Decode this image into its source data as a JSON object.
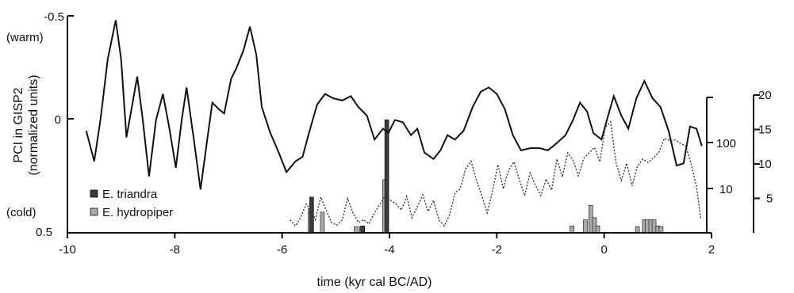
{
  "chart_data": {
    "type": "line",
    "xlabel": "time (kyr cal BC/AD)",
    "x_ticks": [
      "-10",
      "-8",
      "-6",
      "-4",
      "-2",
      "0",
      "2"
    ],
    "xlim": [
      -10,
      2
    ],
    "left_axis": {
      "label_line1": "PCI in GISP2",
      "label_line2": "(normalized units)",
      "ticks": [
        "-0.5",
        "0",
        "0.5"
      ],
      "top_note": "(warm)",
      "bottom_note": "(cold)",
      "ylim": [
        0.5,
        -0.5
      ]
    },
    "middle_axis": {
      "ticks": [
        "100",
        "10"
      ],
      "scale": "log"
    },
    "right_axis": {
      "ticks": [
        "20",
        "15",
        "10",
        "5"
      ],
      "ylim": [
        0,
        20
      ]
    },
    "legend": [
      {
        "label": "E. triandra",
        "color": "#3a3a3a"
      },
      {
        "label": "E. hydropiper",
        "color": "#a9a9a9"
      }
    ],
    "series": [
      {
        "style": "solid",
        "x": [
          -9.65,
          -9.5,
          -9.38,
          -9.25,
          -9.1,
          -9.0,
          -8.9,
          -8.82,
          -8.7,
          -8.6,
          -8.48,
          -8.35,
          -8.22,
          -8.1,
          -7.98,
          -7.87,
          -7.78,
          -7.65,
          -7.52,
          -7.4,
          -7.3,
          -7.18,
          -7.08,
          -6.95,
          -6.85,
          -6.72,
          -6.6,
          -6.48,
          -6.38,
          -6.22,
          -6.08,
          -5.92,
          -5.75,
          -5.62,
          -5.5,
          -5.35,
          -5.2,
          -5.05,
          -4.88,
          -4.72,
          -4.58,
          -4.42,
          -4.28,
          -4.12,
          -4.02,
          -3.9,
          -3.75,
          -3.6,
          -3.48,
          -3.35,
          -3.18,
          -3.05,
          -2.92,
          -2.78,
          -2.62,
          -2.45,
          -2.3,
          -2.15,
          -2.0,
          -1.85,
          -1.7,
          -1.55,
          -1.38,
          -1.2,
          -1.05,
          -0.9,
          -0.72,
          -0.58,
          -0.45,
          -0.32,
          -0.2,
          -0.05,
          0.05,
          0.18,
          0.32,
          0.45,
          0.6,
          0.75,
          0.9,
          1.05,
          1.2,
          1.35,
          1.48,
          1.6,
          1.72,
          1.82
        ],
        "y": [
          0.03,
          0.17,
          -0.03,
          -0.3,
          -0.48,
          -0.3,
          0.06,
          -0.05,
          -0.22,
          -0.03,
          0.24,
          -0.02,
          -0.14,
          0.02,
          0.2,
          -0.02,
          -0.17,
          0.06,
          0.3,
          0.08,
          -0.1,
          -0.07,
          -0.05,
          -0.21,
          -0.26,
          -0.34,
          -0.45,
          -0.32,
          -0.08,
          0.04,
          0.12,
          0.22,
          0.17,
          0.15,
          0.04,
          -0.09,
          -0.14,
          -0.12,
          -0.11,
          -0.13,
          -0.08,
          -0.04,
          0.07,
          0.02,
          0.04,
          -0.02,
          -0.01,
          0.05,
          0.02,
          0.13,
          0.16,
          0.12,
          0.05,
          0.07,
          0.03,
          -0.08,
          -0.15,
          -0.17,
          -0.14,
          -0.07,
          0.05,
          0.12,
          0.11,
          0.11,
          0.12,
          0.09,
          0.05,
          -0.02,
          -0.1,
          -0.06,
          0.04,
          0.07,
          -0.02,
          -0.13,
          -0.04,
          0.02,
          -0.12,
          -0.2,
          -0.12,
          -0.08,
          0.03,
          0.19,
          0.18,
          0.01,
          0.02,
          0.1
        ]
      },
      {
        "style": "dotted",
        "x": [
          -5.85,
          -5.75,
          -5.65,
          -5.55,
          -5.45,
          -5.38,
          -5.28,
          -5.18,
          -5.08,
          -4.98,
          -4.88,
          -4.78,
          -4.68,
          -4.58,
          -4.48,
          -4.38,
          -4.28,
          -4.18,
          -4.08,
          -3.98,
          -3.88,
          -3.78,
          -3.68,
          -3.58,
          -3.48,
          -3.38,
          -3.28,
          -3.18,
          -3.08,
          -2.98,
          -2.88,
          -2.78,
          -2.68,
          -2.58,
          -2.48,
          -2.38,
          -2.28,
          -2.18,
          -2.08,
          -1.98,
          -1.88,
          -1.78,
          -1.68,
          -1.58,
          -1.48,
          -1.38,
          -1.28,
          -1.18,
          -1.08,
          -0.98,
          -0.88,
          -0.78,
          -0.68,
          -0.58,
          -0.48,
          -0.38,
          -0.28,
          -0.18,
          -0.08,
          0.02,
          0.12,
          0.22,
          0.32,
          0.42,
          0.52,
          0.62,
          0.72,
          0.82,
          0.92,
          1.02,
          1.12,
          1.22,
          1.32,
          1.42,
          1.52,
          1.62,
          1.72,
          1.8
        ],
        "y": [
          1.9,
          1.0,
          2.3,
          4.2,
          3.1,
          1.9,
          5.2,
          3.3,
          1.5,
          1.1,
          1.9,
          5.0,
          2.9,
          1.5,
          1.9,
          1.3,
          2.9,
          4.1,
          5.3,
          4.7,
          4.2,
          3.3,
          5.3,
          2.2,
          3.8,
          5.5,
          3.1,
          4.7,
          1.9,
          1.0,
          2.6,
          5.8,
          6.4,
          9.3,
          10.4,
          7.7,
          5.4,
          2.9,
          6.0,
          9.9,
          6.4,
          9.1,
          10.3,
          7.7,
          5.4,
          8.7,
          6.9,
          5.4,
          7.8,
          6.2,
          10.7,
          8.1,
          11.6,
          10.5,
          8.3,
          10.8,
          11.6,
          12.4,
          10.3,
          15.3,
          16.1,
          10.2,
          7.6,
          10.1,
          6.8,
          9.7,
          10.7,
          10.2,
          10.9,
          11.7,
          13.7,
          13.4,
          13.5,
          13.0,
          12.6,
          10.0,
          6.7,
          2.0
        ]
      }
    ],
    "bars": {
      "triandra": {
        "x": [
          -5.45,
          -4.5,
          -4.05
        ],
        "values": [
          5.2,
          1.0,
          16.4
        ]
      },
      "hydropiper": {
        "x": [
          -5.48,
          -5.25,
          -4.62,
          -4.52,
          -4.09,
          -0.6,
          -0.35,
          -0.25,
          -0.18,
          -0.12,
          0.62,
          0.75,
          0.8,
          0.87,
          0.93,
          1.0,
          1.06
        ],
        "values": [
          3.5,
          3.0,
          0.9,
          0.9,
          7.7,
          1.0,
          1.9,
          4.0,
          2.2,
          1.0,
          0.9,
          1.9,
          1.9,
          1.9,
          1.9,
          1.0,
          0.9
        ]
      }
    }
  }
}
